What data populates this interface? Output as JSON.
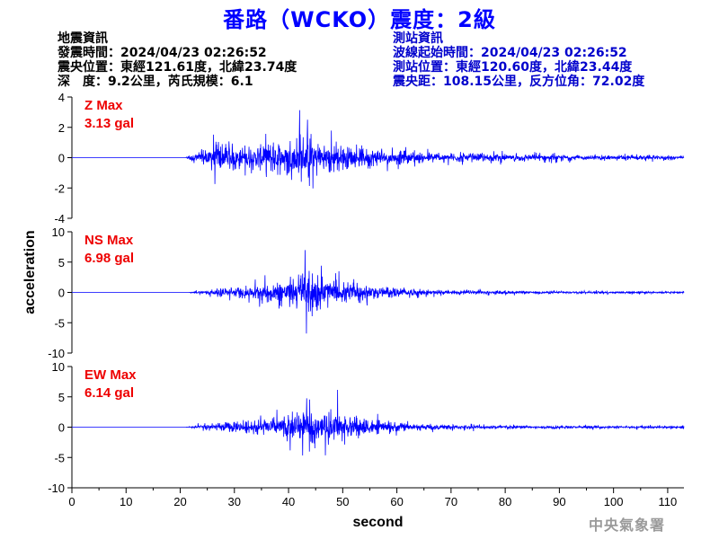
{
  "title": "番路（WCKO）震度：2級",
  "quake_info": {
    "header": "地震資訊",
    "origin_time": "發震時間：2024/04/23 02:26:52",
    "epicenter": "震央位置：東經121.61度，北緯23.74度",
    "depth_magnitude": "深　度：9.2公里，芮氏規模：6.1"
  },
  "station_info": {
    "header": "測站資訊",
    "wave_start": "波線起始時間：2024/04/23 02:26:52",
    "station_location": "測站位置：東經120.60度，北緯23.44度",
    "distance": "震央距：108.15公里，反方位角：72.02度"
  },
  "credit": "中央氣象署",
  "colors": {
    "trace": "#0000ff",
    "peak_label": "#ee0000",
    "title": "#0000ff"
  },
  "chart_data": [
    {
      "type": "line",
      "component": "Z",
      "peak_label": "Z Max",
      "peak_value": "3.13 gal",
      "peak": 3.13,
      "ylim": [
        -4,
        4
      ],
      "yticks": [
        "4",
        "2",
        "0",
        "-2",
        "-4"
      ],
      "ytick_values": [
        4,
        2,
        0,
        -2,
        -4
      ],
      "envelope": {
        "t": [
          0,
          21,
          22,
          25,
          27,
          30,
          33,
          36,
          38,
          40,
          42,
          44,
          46,
          48,
          50,
          52,
          55,
          58,
          60,
          65,
          70,
          75,
          80,
          85,
          90,
          95,
          100,
          105,
          110,
          113
        ],
        "amp": [
          0,
          0,
          0.5,
          1.3,
          2.1,
          1.7,
          1.5,
          1.7,
          2.0,
          2.5,
          3.1,
          2.6,
          2.3,
          2.0,
          1.5,
          1.2,
          1.1,
          0.9,
          0.9,
          0.65,
          0.6,
          0.5,
          0.45,
          0.4,
          0.35,
          0.3,
          0.35,
          0.3,
          0.3,
          0.25
        ]
      }
    },
    {
      "type": "line",
      "component": "NS",
      "peak_label": "NS Max",
      "peak_value": "6.98 gal",
      "peak": 6.98,
      "ylim": [
        -10,
        10
      ],
      "yticks": [
        "10",
        "5",
        "0",
        "-5",
        "-10"
      ],
      "ytick_values": [
        10,
        5,
        0,
        -5,
        -10
      ],
      "envelope": {
        "t": [
          0,
          21.5,
          23,
          26,
          30,
          33,
          36,
          38,
          40,
          42,
          43,
          44,
          45,
          46,
          48,
          50,
          53,
          55,
          57,
          60,
          65,
          70,
          75,
          80,
          85,
          90,
          95,
          100,
          105,
          110,
          113
        ],
        "amp": [
          0,
          0,
          0.4,
          1.1,
          1.6,
          2.2,
          3.0,
          4.0,
          5.2,
          6.0,
          7.0,
          6.5,
          6.8,
          5.5,
          4.5,
          3.5,
          3.3,
          2.6,
          1.8,
          1.4,
          0.9,
          0.75,
          0.6,
          0.5,
          0.45,
          0.4,
          0.4,
          0.35,
          0.35,
          0.3,
          0.3
        ]
      }
    },
    {
      "type": "line",
      "component": "EW",
      "peak_label": "EW Max",
      "peak_value": "6.14 gal",
      "peak": 6.14,
      "ylim": [
        -10,
        10
      ],
      "yticks": [
        "10",
        "5",
        "0",
        "-5",
        "-10"
      ],
      "ytick_values": [
        10,
        5,
        0,
        -5,
        -10
      ],
      "envelope": {
        "t": [
          0,
          21,
          22.5,
          25,
          28,
          30,
          33,
          35,
          37,
          39,
          40,
          42,
          43,
          44,
          46,
          48,
          49,
          50,
          52,
          55,
          58,
          60,
          65,
          70,
          75,
          80,
          85,
          90,
          95,
          100,
          105,
          110,
          113
        ],
        "amp": [
          0,
          0,
          0.5,
          1.0,
          1.4,
          1.6,
          2.0,
          2.5,
          3.0,
          4.5,
          5.0,
          4.6,
          5.2,
          4.5,
          5.5,
          5.0,
          6.1,
          4.2,
          3.3,
          2.6,
          1.8,
          1.4,
          0.9,
          0.8,
          0.65,
          0.6,
          0.5,
          0.45,
          0.45,
          0.4,
          0.4,
          0.35,
          0.35
        ]
      }
    }
  ],
  "x_axis": {
    "label": "second",
    "ticks": [
      "0",
      "10",
      "20",
      "30",
      "40",
      "50",
      "60",
      "70",
      "80",
      "90",
      "100",
      "110"
    ],
    "tick_values": [
      0,
      10,
      20,
      30,
      40,
      50,
      60,
      70,
      80,
      90,
      100,
      110
    ],
    "xlim": [
      0,
      113
    ]
  },
  "y_axis": {
    "label": "acceleration"
  }
}
